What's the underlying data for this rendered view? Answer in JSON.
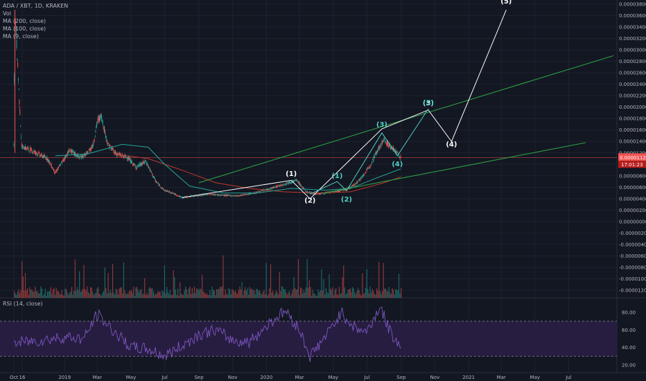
{
  "header": {
    "symbol": "ADA / XBT, 1D, KRAKEN",
    "indicators": [
      "Vol",
      "MA (200, close)",
      "MA (100, close)",
      "MA (9, close)"
    ],
    "rsi_label": "RSI (14, close)"
  },
  "colors": {
    "background": "#131722",
    "grid": "#1e2230",
    "text": "#b2b5be",
    "candle_up": "#26a69a",
    "candle_down": "#ef5350",
    "ma200": "#c0392b",
    "ma100": "#26a69a",
    "channel": "#2ea043",
    "wave_white": "#ffffff",
    "wave_teal": "#4fd1c5",
    "rsi_line": "#7e57c2",
    "rsi_band": "#2a1e45",
    "price_badge": "#ef5350"
  },
  "chart_data": [
    {
      "type": "line",
      "title": "ADA / XBT, 1D, KRAKEN",
      "y_axis_labels": [
        "0.00003800",
        "0.00003600",
        "0.00003400",
        "0.00003200",
        "0.00003000",
        "0.00002800",
        "0.00002600",
        "0.00002400",
        "0.00002200",
        "0.00002000",
        "0.00001800",
        "0.00001600",
        "0.00001400",
        "0.00001200",
        "0.00001000",
        "0.00000800",
        "0.00000600",
        "0.00000400",
        "0.00000200",
        "0.00000000",
        "-0.00000200",
        "-0.00000400",
        "-0.00000600",
        "-0.00000800",
        "-0.00001000",
        "-0.00001200"
      ],
      "x_axis_labels": [
        "Oct",
        "16",
        "2019",
        "Mar",
        "May",
        "Jul",
        "Sep",
        "Nov",
        "2020",
        "Mar",
        "May",
        "Jul",
        "Sep",
        "Nov",
        "2021",
        "Mar",
        "May",
        "Jul"
      ],
      "ylim": [
        -1.22e-05,
        3.85e-05
      ],
      "series": [
        {
          "name": "ADA / XBT",
          "x": [
            "2018-10-01",
            "2018-10-03",
            "2018-10-15",
            "2018-11-01",
            "2018-12-01",
            "2018-12-15",
            "2019-01-10",
            "2019-01-28",
            "2019-02-10",
            "2019-02-22",
            "2019-03-01",
            "2019-03-08",
            "2019-03-20",
            "2019-04-05",
            "2019-04-25",
            "2019-05-10",
            "2019-05-28",
            "2019-06-15",
            "2019-06-30",
            "2019-07-15",
            "2019-08-01",
            "2019-08-25",
            "2019-09-20",
            "2019-10-15",
            "2019-11-10",
            "2019-12-10",
            "2020-01-10",
            "2020-02-10",
            "2020-02-25",
            "2020-03-13",
            "2020-04-01",
            "2020-05-01",
            "2020-05-20",
            "2020-06-05",
            "2020-06-20",
            "2020-07-05",
            "2020-07-20",
            "2020-08-01",
            "2020-08-08",
            "2020-08-20",
            "2020-08-31"
          ],
          "y": [
            1.35e-05,
            3.7e-05,
            1.31e-05,
            1.25e-05,
            1.1e-05,
            8.5e-06,
            1.25e-05,
            1.12e-05,
            1.18e-05,
            1.35e-05,
            1.75e-05,
            1.85e-05,
            1.35e-05,
            1.18e-05,
            1.12e-05,
            9.5e-06,
            1.05e-05,
            7e-06,
            5.5e-06,
            5e-06,
            4.2e-06,
            4.5e-06,
            4.8e-06,
            4.6e-06,
            4.5e-06,
            5e-06,
            5.8e-06,
            6.8e-06,
            7.2e-06,
            5.2e-06,
            4.8e-06,
            5.2e-06,
            5.5e-06,
            6.2e-06,
            7.5e-06,
            9.5e-06,
            1.25e-05,
            1.43e-05,
            1.35e-05,
            1.25e-05,
            1.12e-05
          ]
        },
        {
          "name": "MA (200, close)",
          "x": [
            "2019-04-01",
            "2019-06-01",
            "2019-08-01",
            "2019-10-01",
            "2019-12-01",
            "2020-02-01",
            "2020-04-01",
            "2020-06-01",
            "2020-08-01",
            "2020-08-31"
          ],
          "y": [
            1.18e-05,
            1.1e-05,
            9e-06,
            6.8e-06,
            5.8e-06,
            5.2e-06,
            5e-06,
            5.2e-06,
            6.8e-06,
            7.8e-06
          ]
        },
        {
          "name": "MA (100, close)",
          "x": [
            "2018-12-15",
            "2019-02-10",
            "2019-04-15",
            "2019-06-01",
            "2019-07-01",
            "2019-08-15",
            "2019-10-15",
            "2019-12-15",
            "2020-02-15",
            "2020-04-15",
            "2020-06-01",
            "2020-07-15",
            "2020-08-31"
          ],
          "y": [
            1.15e-05,
            1.18e-05,
            1.35e-05,
            1.3e-05,
            1e-05,
            6.2e-06,
            5e-06,
            5e-06,
            5.8e-06,
            5.5e-06,
            5.8e-06,
            7.5e-06,
            9.2e-06
          ]
        },
        {
          "name": "Upper channel",
          "x": [
            "2019-09-01",
            "2021-09-20"
          ],
          "y": [
            6.8e-06,
            2.9e-05
          ]
        },
        {
          "name": "Lower channel",
          "x": [
            "2020-04-15",
            "2021-08-01"
          ],
          "y": [
            5e-06,
            1.38e-05
          ]
        },
        {
          "name": "Wave projection",
          "x": [
            "2019-08-01",
            "2020-02-15",
            "2020-03-20",
            "2020-07-28",
            "2020-10-20",
            "2020-12-01",
            "2021-03-10"
          ],
          "y": [
            4.2e-06,
            7.2e-06,
            4e-06,
            1.62e-05,
            1.95e-05,
            1.4e-05,
            3.7e-05
          ]
        },
        {
          "name": "Wave subcount",
          "x": [
            "2020-03-20",
            "2020-05-08",
            "2020-05-25",
            "2020-07-28",
            "2020-08-25",
            "2020-10-20"
          ],
          "y": [
            4.8e-06,
            7e-06,
            5.4e-06,
            1.55e-05,
            1.15e-05,
            1.97e-05
          ]
        }
      ],
      "annotations": [
        {
          "text": "(5)",
          "x": "2021-03-10",
          "y": 3.81e-05,
          "color": "white"
        },
        {
          "text": "(1)",
          "x": "2020-02-15",
          "y": 8e-06,
          "color": "white"
        },
        {
          "text": "(2)",
          "x": "2020-03-20",
          "y": 3.3e-06,
          "color": "white"
        },
        {
          "text": "(3)",
          "x": "2020-10-20",
          "y": 2.03e-05,
          "color": "white"
        },
        {
          "text": "(4)",
          "x": "2020-12-01",
          "y": 1.31e-05,
          "color": "white"
        },
        {
          "text": "(1)",
          "x": "2020-05-08",
          "y": 7.6e-06,
          "color": "teal"
        },
        {
          "text": "(2)",
          "x": "2020-05-25",
          "y": 3.5e-06,
          "color": "teal"
        },
        {
          "text": "(3)",
          "x": "2020-07-28",
          "y": 1.66e-05,
          "color": "teal"
        },
        {
          "text": "(4)",
          "x": "2020-08-25",
          "y": 9.7e-06,
          "color": "teal"
        },
        {
          "text": "(5)",
          "x": "2020-10-20",
          "y": 2.04e-05,
          "color": "teal"
        }
      ],
      "price_badge": {
        "value": "0.00001121",
        "countdown": "17:01:23"
      }
    },
    {
      "type": "line",
      "title": "RSI (14, close)",
      "y_axis_labels": [
        "80.00",
        "60.00",
        "40.00",
        "20.00"
      ],
      "ylim": [
        15,
        90
      ],
      "bands": [
        30,
        70
      ],
      "series": [
        {
          "name": "RSI",
          "x": [
            "2018-10-01",
            "2018-11-15",
            "2019-01-01",
            "2019-02-05",
            "2019-03-01",
            "2019-03-25",
            "2019-05-01",
            "2019-06-01",
            "2019-07-01",
            "2019-08-01",
            "2019-09-01",
            "2019-10-01",
            "2019-11-01",
            "2019-12-01",
            "2020-01-10",
            "2020-02-05",
            "2020-03-01",
            "2020-03-20",
            "2020-04-20",
            "2020-05-15",
            "2020-06-10",
            "2020-07-01",
            "2020-07-25",
            "2020-08-10",
            "2020-08-31"
          ],
          "y": [
            45,
            48,
            52,
            50,
            78,
            62,
            40,
            38,
            30,
            42,
            55,
            60,
            48,
            46,
            70,
            82,
            60,
            30,
            55,
            80,
            62,
            58,
            87,
            60,
            40
          ]
        }
      ]
    }
  ]
}
